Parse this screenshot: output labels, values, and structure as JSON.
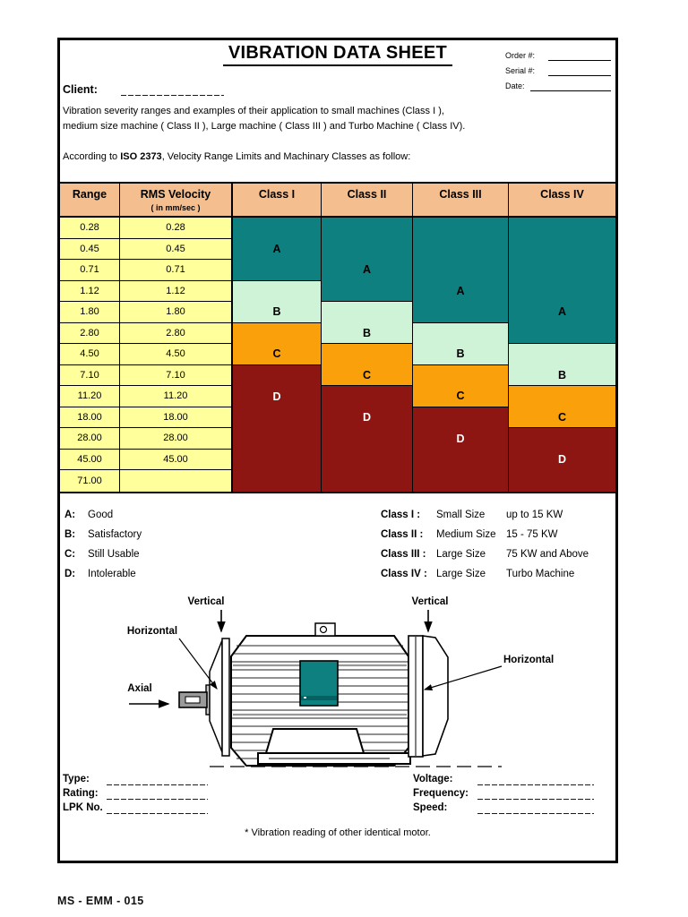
{
  "header": {
    "title": "VIBRATION DATA SHEET",
    "order_label": "Order #:",
    "serial_label": "Serial #:",
    "date_label": "Date:",
    "client_label": "Client:",
    "order_value": "",
    "serial_value": "",
    "date_value": "",
    "client_value": ""
  },
  "intro": {
    "line1": "Vibration severity ranges and examples of their application to small machines (Class I ),",
    "line2": "medium size machine ( Class II ), Large machine ( Class III ) and Turbo Machine ( Class IV).",
    "iso_prefix": "According to ",
    "iso_bold": "ISO 2373",
    "iso_suffix": ", Velocity Range Limits and Machinary Classes as follow:"
  },
  "table": {
    "headers": {
      "range": "Range",
      "rms": "RMS Velocity",
      "rms_unit": "( in mm/sec )",
      "classes": [
        "Class I",
        "Class II",
        "Class III",
        "Class IV"
      ]
    },
    "rows": [
      {
        "range": "0.28",
        "rms": "0.28"
      },
      {
        "range": "0.45",
        "rms": "0.45"
      },
      {
        "range": "0.71",
        "rms": "0.71"
      },
      {
        "range": "1.12",
        "rms": "1.12"
      },
      {
        "range": "1.80",
        "rms": "1.80"
      },
      {
        "range": "2.80",
        "rms": "2.80"
      },
      {
        "range": "4.50",
        "rms": "4.50"
      },
      {
        "range": "7.10",
        "rms": "7.10"
      },
      {
        "range": "11.20",
        "rms": "11.20"
      },
      {
        "range": "18.00",
        "rms": "18.00"
      },
      {
        "range": "28.00",
        "rms": "28.00"
      },
      {
        "range": "45.00",
        "rms": "45.00"
      },
      {
        "range": "71.00",
        "rms": ""
      }
    ],
    "class_zones": [
      [
        {
          "grade": "A",
          "rows": 3,
          "label_row": 2
        },
        {
          "grade": "B",
          "rows": 2,
          "label_row": 2
        },
        {
          "grade": "C",
          "rows": 2,
          "label_row": 2
        },
        {
          "grade": "D",
          "rows": 6,
          "label_row": 2
        }
      ],
      [
        {
          "grade": "A",
          "rows": 4,
          "label_row": 3
        },
        {
          "grade": "B",
          "rows": 2,
          "label_row": 2
        },
        {
          "grade": "C",
          "rows": 2,
          "label_row": 2
        },
        {
          "grade": "D",
          "rows": 5,
          "label_row": 2
        }
      ],
      [
        {
          "grade": "A",
          "rows": 5,
          "label_row": 4
        },
        {
          "grade": "B",
          "rows": 2,
          "label_row": 2
        },
        {
          "grade": "C",
          "rows": 2,
          "label_row": 2
        },
        {
          "grade": "D",
          "rows": 4,
          "label_row": 2
        }
      ],
      [
        {
          "grade": "A",
          "rows": 6,
          "label_row": 5
        },
        {
          "grade": "B",
          "rows": 2,
          "label_row": 2
        },
        {
          "grade": "C",
          "rows": 2,
          "label_row": 2
        },
        {
          "grade": "D",
          "rows": 3,
          "label_row": 2
        }
      ]
    ],
    "grade_colors": {
      "A": "#0E8080",
      "B": "#CFF3D6",
      "C": "#F9A00B",
      "D": "#8D1512"
    },
    "grade_text_colors": {
      "A": "#000000",
      "B": "#000000",
      "C": "#000000",
      "D": "#FFFFFF"
    },
    "header_bg": "#F5BE8E",
    "value_bg": "#FFFF9C"
  },
  "legend": {
    "grades": [
      {
        "key": "A:",
        "text": "Good"
      },
      {
        "key": "B:",
        "text": "Satisfactory"
      },
      {
        "key": "C:",
        "text": "Still Usable"
      },
      {
        "key": "D:",
        "text": "Intolerable"
      }
    ],
    "classes": [
      {
        "label": "Class I :",
        "size": "Small Size",
        "power": "up to 15 KW"
      },
      {
        "label": "Class II :",
        "size": "Medium Size",
        "power": "15 - 75 KW"
      },
      {
        "label": "Class III :",
        "size": "Large Size",
        "power": "75 KW and Above"
      },
      {
        "label": "Class IV :",
        "size": "Large Size",
        "power": "Turbo Machine"
      }
    ]
  },
  "diagram": {
    "labels": {
      "left_vertical": "Vertical",
      "left_horizontal": "Horizontal",
      "axial": "Axial",
      "right_vertical": "Vertical",
      "right_horizontal": "Horizontal"
    },
    "terminal_box_color": "#0E8080"
  },
  "fields": {
    "left": [
      {
        "label": "Type:",
        "value": ""
      },
      {
        "label": "Rating:",
        "value": ""
      },
      {
        "label": "LPK No.",
        "value": ""
      }
    ],
    "right": [
      {
        "label": "Voltage:",
        "value": ""
      },
      {
        "label": "Frequency:",
        "value": ""
      },
      {
        "label": "Speed:",
        "value": ""
      }
    ]
  },
  "footnote": "* Vibration reading of other identical motor.",
  "footer": {
    "code": "MS - EMM - 015"
  }
}
